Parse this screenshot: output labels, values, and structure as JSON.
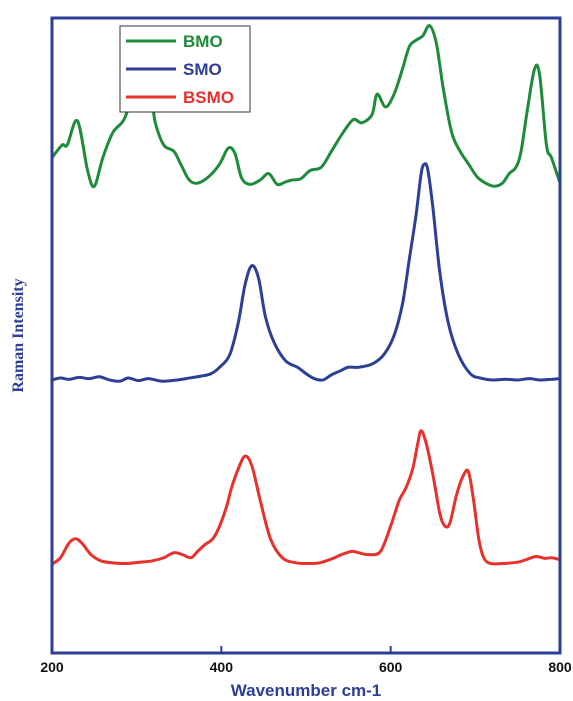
{
  "chart_data": {
    "type": "line",
    "title": "",
    "xlabel": "Wavenumber cm-1",
    "ylabel": "Raman Intensity",
    "xlim": [
      200,
      800
    ],
    "ylim": [
      0,
      1
    ],
    "x_ticks": [
      "200",
      "400",
      "600",
      "800"
    ],
    "y_ticks": [],
    "grid": false,
    "legend": "top-left",
    "colors": {
      "axis": "#2d3e96",
      "title": "#2d3e96",
      "tick_text": "#111111"
    },
    "series": [
      {
        "name": "BMO",
        "color": "#1e8b3a",
        "x": [
          200,
          212,
          218,
          230,
          242,
          250,
          260,
          272,
          285,
          298,
          310,
          318,
          322,
          332,
          344,
          352,
          362,
          372,
          385,
          398,
          408,
          416,
          424,
          434,
          446,
          456,
          466,
          476,
          484,
          494,
          505,
          518,
          530,
          544,
          556,
          566,
          578,
          584,
          594,
          604,
          614,
          622,
          630,
          638,
          646,
          654,
          662,
          672,
          682,
          692,
          702,
          712,
          722,
          732,
          740,
          748,
          754,
          762,
          770,
          776,
          784,
          790,
          800
        ],
        "y": [
          0.78,
          0.8,
          0.8,
          0.838,
          0.76,
          0.735,
          0.78,
          0.82,
          0.84,
          0.885,
          0.885,
          0.87,
          0.835,
          0.8,
          0.79,
          0.77,
          0.745,
          0.74,
          0.75,
          0.77,
          0.795,
          0.787,
          0.748,
          0.738,
          0.745,
          0.755,
          0.738,
          0.742,
          0.745,
          0.747,
          0.76,
          0.765,
          0.79,
          0.82,
          0.84,
          0.835,
          0.848,
          0.88,
          0.86,
          0.88,
          0.92,
          0.955,
          0.965,
          0.972,
          0.988,
          0.96,
          0.89,
          0.82,
          0.79,
          0.77,
          0.75,
          0.74,
          0.735,
          0.74,
          0.755,
          0.765,
          0.79,
          0.86,
          0.92,
          0.91,
          0.8,
          0.78,
          0.74
        ]
      },
      {
        "name": "SMO",
        "color": "#2d3e96",
        "x": [
          200,
          210,
          220,
          232,
          244,
          256,
          268,
          280,
          290,
          302,
          314,
          330,
          348,
          362,
          376,
          388,
          398,
          410,
          420,
          428,
          436,
          444,
          452,
          462,
          476,
          490,
          500,
          510,
          520,
          530,
          540,
          550,
          562,
          578,
          592,
          604,
          614,
          622,
          630,
          636,
          640,
          644,
          650,
          658,
          668,
          680,
          694,
          706,
          720,
          736,
          750,
          764,
          776,
          790,
          800
        ],
        "y": [
          0.43,
          0.433,
          0.431,
          0.434,
          0.432,
          0.435,
          0.43,
          0.428,
          0.433,
          0.429,
          0.432,
          0.428,
          0.43,
          0.433,
          0.436,
          0.44,
          0.45,
          0.47,
          0.52,
          0.58,
          0.61,
          0.59,
          0.53,
          0.49,
          0.46,
          0.45,
          0.44,
          0.432,
          0.43,
          0.438,
          0.444,
          0.45,
          0.45,
          0.455,
          0.47,
          0.5,
          0.55,
          0.62,
          0.69,
          0.755,
          0.77,
          0.76,
          0.7,
          0.6,
          0.52,
          0.47,
          0.44,
          0.433,
          0.43,
          0.431,
          0.43,
          0.432,
          0.43,
          0.431,
          0.432
        ]
      },
      {
        "name": "BSMO",
        "color": "#e8302c",
        "x": [
          200,
          210,
          220,
          228,
          236,
          246,
          258,
          272,
          288,
          304,
          318,
          332,
          344,
          354,
          364,
          372,
          380,
          390,
          398,
          406,
          412,
          420,
          428,
          436,
          446,
          458,
          472,
          488,
          502,
          516,
          530,
          542,
          554,
          562,
          574,
          588,
          600,
          610,
          618,
          626,
          632,
          636,
          642,
          650,
          658,
          664,
          670,
          678,
          686,
          692,
          698,
          704,
          710,
          718,
          732,
          750,
          762,
          772,
          782,
          790,
          800
        ],
        "y": [
          0.14,
          0.15,
          0.173,
          0.18,
          0.172,
          0.155,
          0.145,
          0.142,
          0.141,
          0.143,
          0.145,
          0.15,
          0.158,
          0.155,
          0.15,
          0.16,
          0.17,
          0.18,
          0.2,
          0.23,
          0.26,
          0.29,
          0.31,
          0.295,
          0.24,
          0.18,
          0.15,
          0.142,
          0.141,
          0.142,
          0.148,
          0.155,
          0.16,
          0.158,
          0.155,
          0.16,
          0.2,
          0.24,
          0.26,
          0.29,
          0.33,
          0.35,
          0.33,
          0.28,
          0.22,
          0.2,
          0.205,
          0.25,
          0.28,
          0.285,
          0.24,
          0.18,
          0.15,
          0.141,
          0.141,
          0.143,
          0.148,
          0.152,
          0.149,
          0.15,
          0.147
        ]
      }
    ]
  }
}
